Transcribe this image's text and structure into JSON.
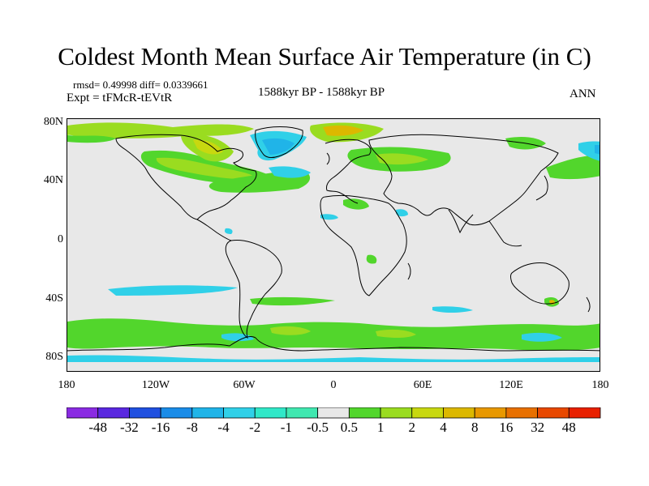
{
  "title": "Coldest Month Mean Surface Air Temperature (in C)",
  "stats": "rmsd= 0.49998 diff= 0.0339661",
  "experiment": "Expt = tFMcR-tEVtR",
  "period": "1588kyr BP - 1588kyr BP",
  "season": "ANN",
  "lat_labels": [
    "80N",
    "40N",
    "0",
    "40S",
    "80S"
  ],
  "lon_labels": [
    "180",
    "120W",
    "60W",
    "0",
    "60E",
    "120E",
    "180"
  ],
  "colorbar": {
    "colors": [
      "#8a2be2",
      "#5a28e0",
      "#2050e0",
      "#1a8ce8",
      "#20b4e8",
      "#30d0e8",
      "#30e8c8",
      "#40e8b0",
      "#e8e8e8",
      "#52d62c",
      "#9adc20",
      "#c8d810",
      "#dcb800",
      "#e89800",
      "#e87000",
      "#e84800",
      "#e82000"
    ],
    "labels": [
      "-48",
      "-32",
      "-16",
      "-8",
      "-4",
      "-2",
      "-1",
      "-0.5",
      "0.5",
      "1",
      "2",
      "4",
      "8",
      "16",
      "32",
      "48"
    ]
  }
}
